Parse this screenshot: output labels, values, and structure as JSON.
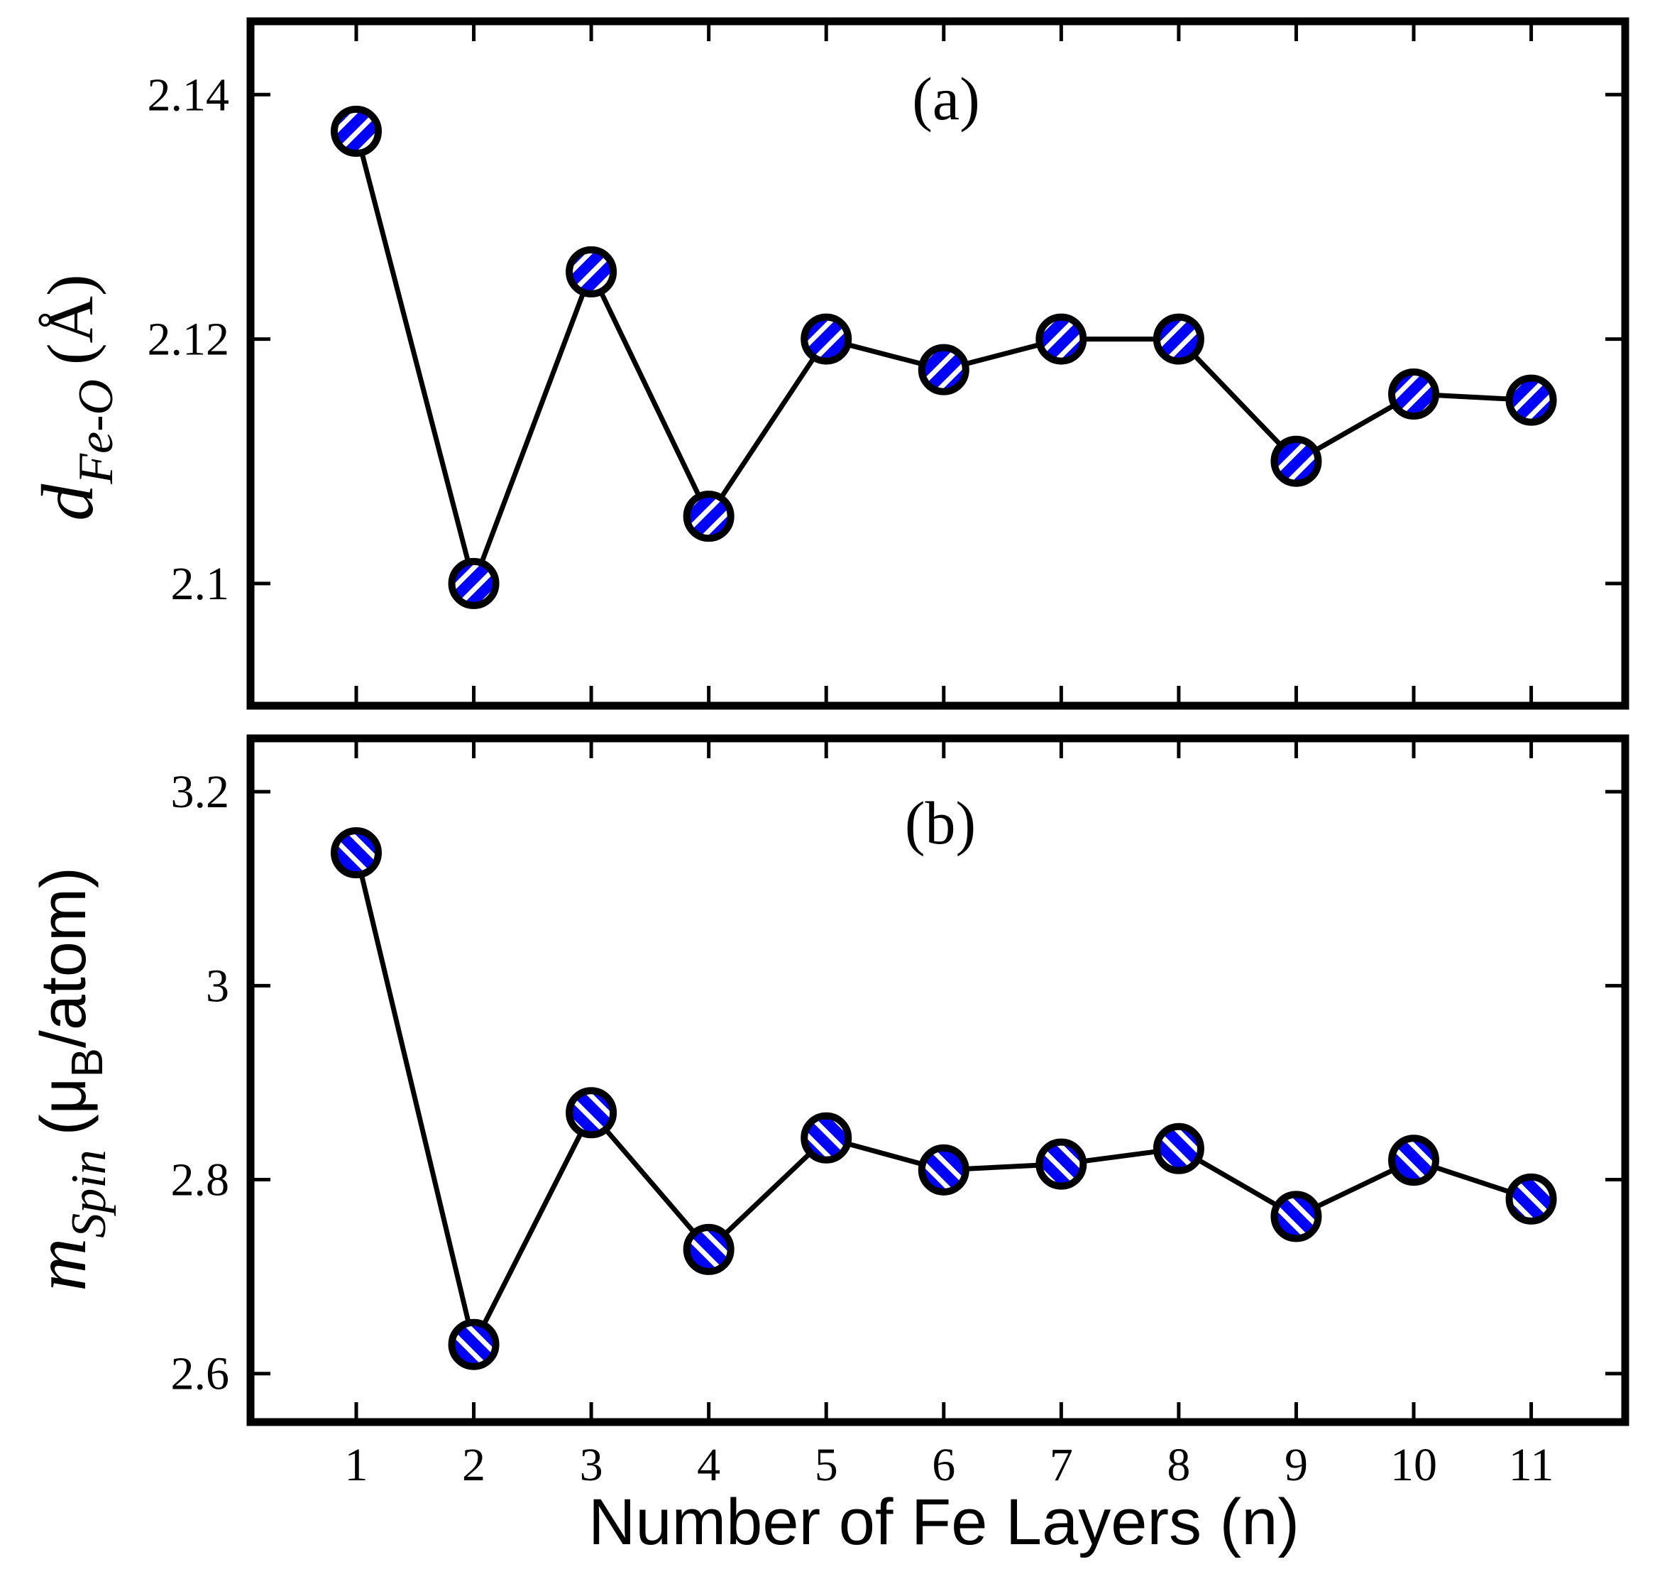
{
  "chart_data": [
    {
      "type": "line",
      "panel_label": "(a)",
      "x": [
        1,
        2,
        3,
        4,
        5,
        6,
        7,
        8,
        9,
        10,
        11
      ],
      "values": [
        2.137,
        2.1,
        2.1255,
        2.1055,
        2.12,
        2.1175,
        2.12,
        2.12,
        2.11,
        2.1155,
        2.115
      ],
      "ylim": [
        2.09,
        2.146
      ],
      "yticks": [
        2.1,
        2.12,
        2.14
      ],
      "ytick_labels": [
        "2.1",
        "2.12",
        "2.14"
      ],
      "ylabel": {
        "symbol": "d",
        "subscript": "Fe-O",
        "unit": "(Å)"
      },
      "marker": "circle, blue/white diagonal hatch, black edge",
      "line_color": "#000000"
    },
    {
      "type": "line",
      "panel_label": "(b)",
      "x": [
        1,
        2,
        3,
        4,
        5,
        6,
        7,
        8,
        9,
        10,
        11
      ],
      "values": [
        3.137,
        2.63,
        2.869,
        2.728,
        2.843,
        2.81,
        2.816,
        2.832,
        2.762,
        2.82,
        2.78
      ],
      "ylim": [
        2.55,
        3.255
      ],
      "yticks": [
        2.6,
        2.8,
        3.0,
        3.2
      ],
      "ytick_labels": [
        "2.6",
        "2.8",
        "3",
        "3.2"
      ],
      "ylabel": {
        "symbol": "m",
        "subscript": "Spin",
        "unit_open": "(μ",
        "unit_sub": "B",
        "unit_close": "/atom)"
      },
      "marker": "circle, blue/white diagonal hatch, black edge",
      "line_color": "#000000"
    }
  ],
  "shared": {
    "xlim": [
      0.1,
      11.8
    ],
    "xticks": [
      1,
      2,
      3,
      4,
      5,
      6,
      7,
      8,
      9,
      10,
      11
    ],
    "xtick_labels": [
      "1",
      "2",
      "3",
      "4",
      "5",
      "6",
      "7",
      "8",
      "9",
      "10",
      "11"
    ],
    "xlabel": "Number of Fe Layers (n)"
  },
  "colors": {
    "marker_fill": "#0000ff",
    "marker_stripe": "#ffffff",
    "frame": "#000000"
  }
}
